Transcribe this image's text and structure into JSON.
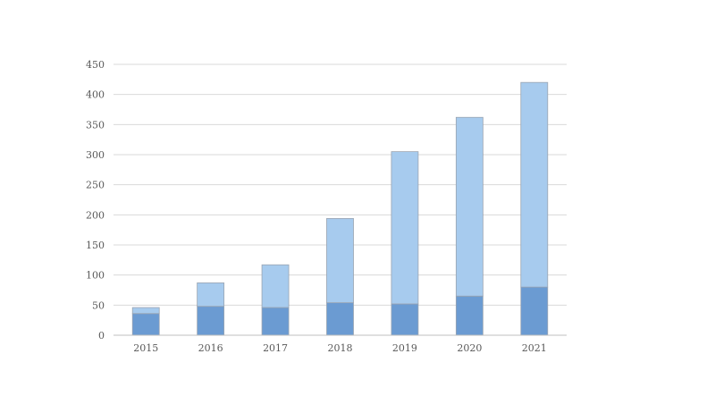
{
  "chart_data": {
    "type": "bar",
    "stacked": true,
    "title": "",
    "xlabel": "",
    "ylabel": "",
    "categories": [
      "2015",
      "2016",
      "2017",
      "2018",
      "2019",
      "2020",
      "2021"
    ],
    "series": [
      {
        "values": [
          36,
          48,
          46,
          54,
          52,
          65,
          80
        ],
        "color": "#6b9bd2"
      },
      {
        "values": [
          10,
          39,
          71,
          140,
          253,
          297,
          340
        ],
        "color": "#a7cbee"
      }
    ],
    "ylim": [
      0,
      450
    ],
    "yticks": [
      0,
      50,
      100,
      150,
      200,
      250,
      300,
      350,
      400,
      450
    ],
    "grid": true,
    "legend": "none"
  }
}
